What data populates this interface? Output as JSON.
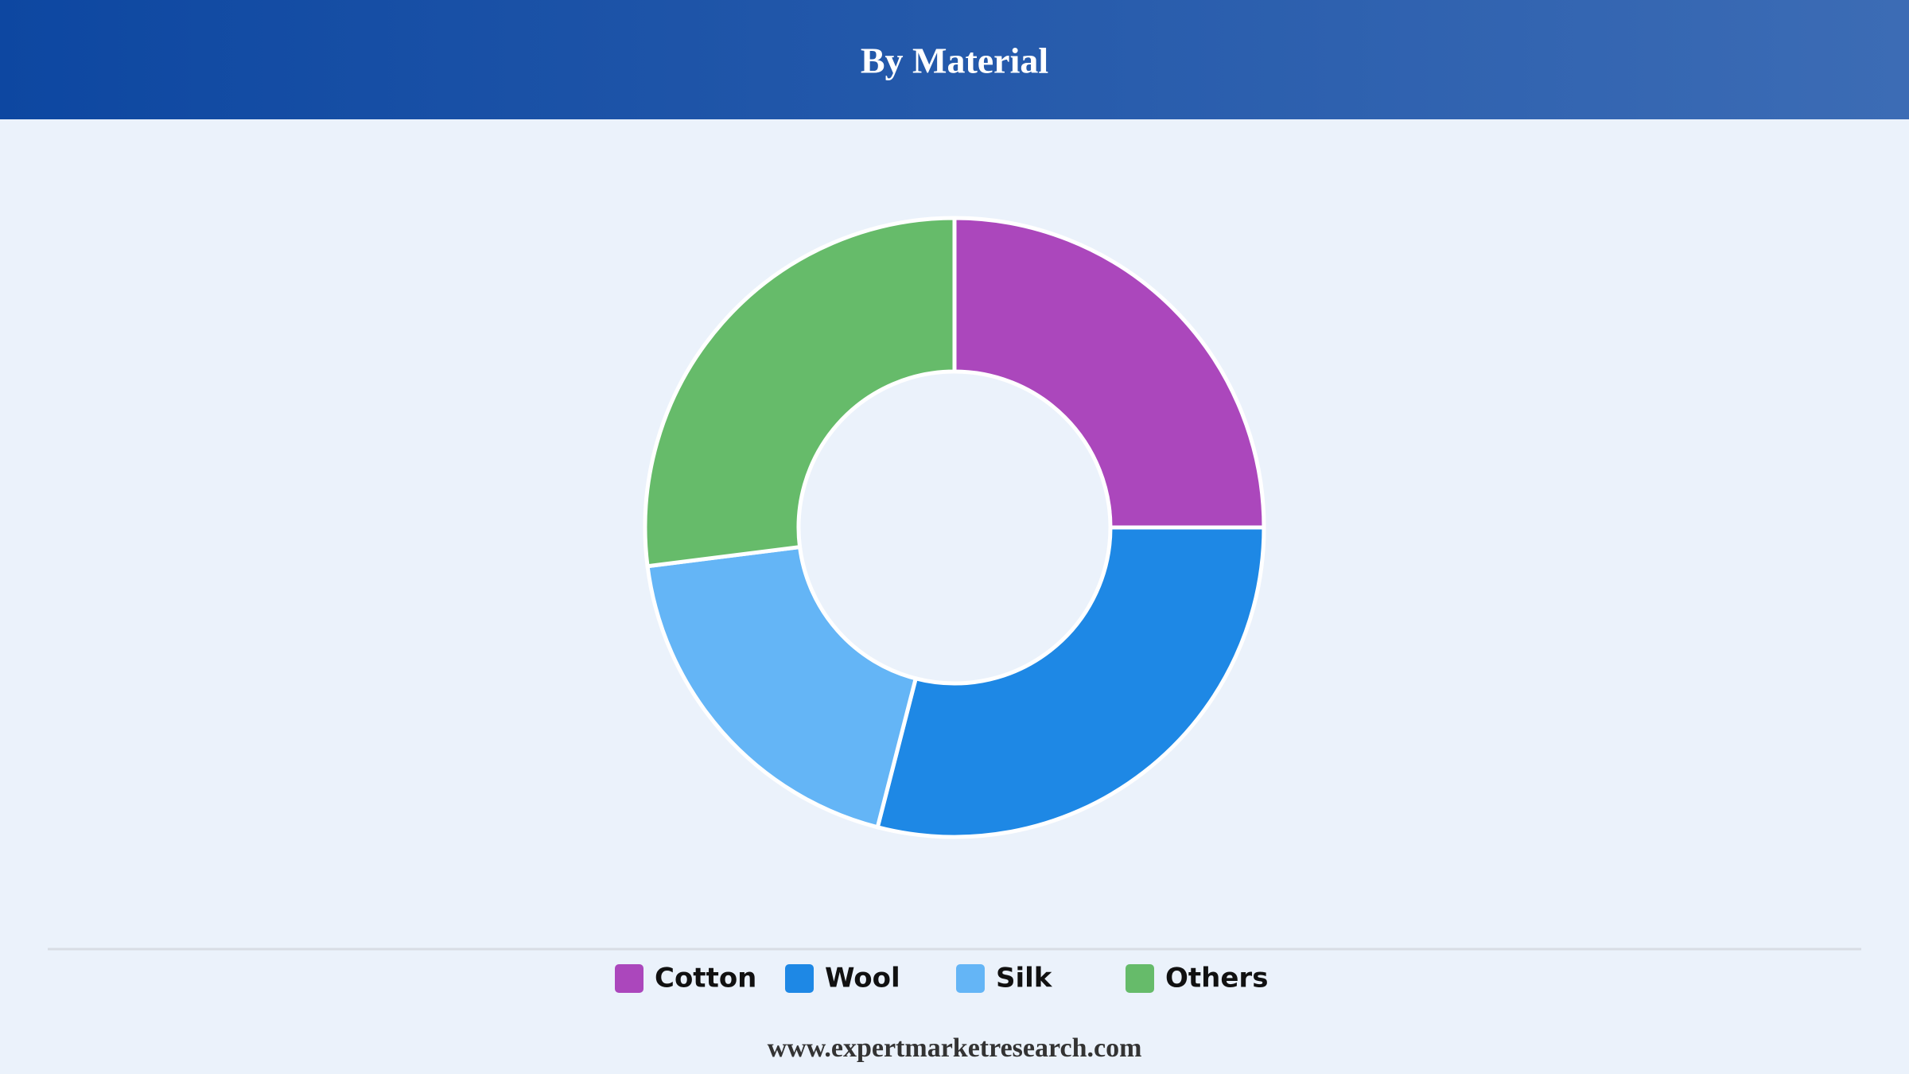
{
  "chart_data": {
    "type": "donut",
    "title": "By Material",
    "categories": [
      "Cotton",
      "Wool",
      "Silk",
      "Others"
    ],
    "values": [
      25,
      29,
      19,
      27
    ],
    "colors": [
      "#ab47bc",
      "#1e88e5",
      "#64b5f6",
      "#66bb6a"
    ],
    "legend": "bottom",
    "source": "www.expertmarketresearch.com"
  }
}
